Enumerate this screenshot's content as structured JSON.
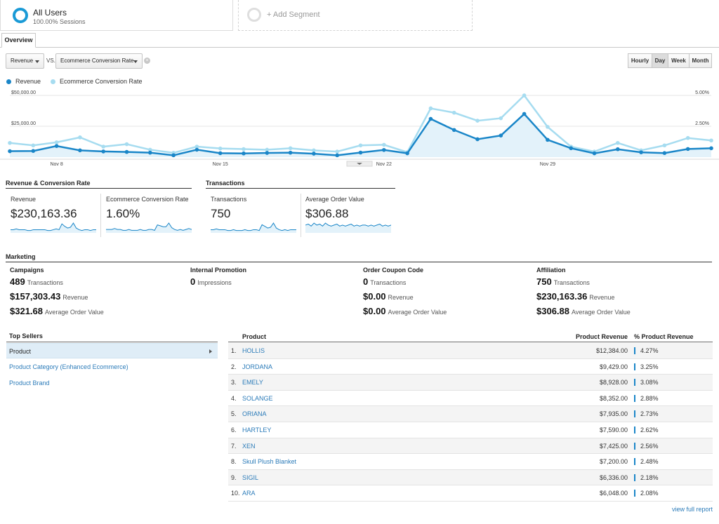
{
  "segments": {
    "active": {
      "title": "All Users",
      "subtitle": "100.00% Sessions"
    },
    "add_label": "+ Add Segment"
  },
  "tabs": [
    {
      "label": "Overview"
    }
  ],
  "controls": {
    "metric1": "Revenue",
    "vs_label": "VS.",
    "metric2": "Ecommerce Conversion Rate",
    "clear_icon": "×",
    "time_buttons": [
      {
        "label": "Hourly",
        "active": false
      },
      {
        "label": "Day",
        "active": true
      },
      {
        "label": "Week",
        "active": false
      },
      {
        "label": "Month",
        "active": false
      }
    ]
  },
  "legend": [
    {
      "label": "Revenue",
      "color": "#1a86c8"
    },
    {
      "label": "Ecommerce Conversion Rate",
      "color": "#a6dcf0"
    }
  ],
  "chart_data": {
    "type": "line",
    "x_ticks": [
      "Nov 8",
      "Nov 15",
      "Nov 22",
      "Nov 29"
    ],
    "y_left_ticks": [
      "$50,000.00",
      "$25,000.00"
    ],
    "y_right_ticks": [
      "5.00%",
      "2.50%"
    ],
    "y_left_range": [
      0,
      50000
    ],
    "y_right_range": [
      0,
      5
    ],
    "series": [
      {
        "name": "Revenue",
        "color": "#1a86c8",
        "values": [
          4800,
          5000,
          9000,
          5500,
          4600,
          4200,
          3600,
          1500,
          6000,
          3200,
          3000,
          3400,
          3600,
          2800,
          1500,
          3700,
          5800,
          3100,
          31000,
          22000,
          14500,
          17500,
          35000,
          14000,
          7200,
          3100,
          6400,
          3900,
          3300,
          6600,
          7200
        ]
      },
      {
        "name": "Ecommerce Conversion Rate",
        "color": "#a6dcf0",
        "values": [
          1.15,
          0.95,
          1.2,
          1.6,
          0.85,
          1.05,
          0.6,
          0.35,
          0.85,
          0.7,
          0.65,
          0.6,
          0.72,
          0.55,
          0.45,
          0.95,
          1.0,
          0.4,
          3.95,
          3.6,
          2.95,
          3.15,
          5.0,
          2.45,
          0.85,
          0.45,
          1.15,
          0.55,
          0.95,
          1.55,
          1.35
        ]
      }
    ],
    "grid": true
  },
  "summary": {
    "rev_conv_heading": "Revenue & Conversion Rate",
    "transactions_heading": "Transactions",
    "kpis": [
      {
        "label": "Revenue",
        "value": "$230,163.36",
        "spark": [
          3,
          3,
          4,
          3,
          3,
          3,
          2,
          2,
          3,
          3,
          3,
          3,
          3,
          2,
          2,
          3,
          4,
          3,
          10,
          7,
          5,
          6,
          11,
          5,
          3,
          2,
          3,
          3,
          2,
          3,
          3
        ]
      },
      {
        "label": "Ecommerce Conversion Rate",
        "value": "1.60%",
        "spark": [
          3,
          3,
          3,
          4,
          3,
          3,
          2,
          2,
          3,
          2,
          2,
          2,
          3,
          2,
          2,
          3,
          3,
          2,
          8,
          7,
          6,
          6,
          10,
          5,
          3,
          2,
          3,
          2,
          3,
          4,
          3
        ]
      },
      {
        "label": "Transactions",
        "value": "750",
        "spark": [
          3,
          3,
          4,
          3,
          3,
          3,
          2,
          2,
          3,
          2,
          2,
          2,
          3,
          2,
          2,
          3,
          3,
          2,
          9,
          7,
          5,
          6,
          11,
          5,
          3,
          2,
          3,
          2,
          3,
          3,
          3
        ]
      },
      {
        "label": "Average Order Value",
        "value": "$306.88",
        "spark": [
          7,
          8,
          6,
          9,
          7,
          8,
          6,
          9,
          7,
          6,
          7,
          8,
          6,
          7,
          6,
          7,
          8,
          6,
          7,
          6,
          7,
          7,
          6,
          7,
          6,
          7,
          8,
          6,
          7,
          6,
          7
        ]
      }
    ]
  },
  "marketing": {
    "heading": "Marketing",
    "columns": [
      {
        "title": "Campaigns",
        "rows": [
          {
            "value": "489",
            "label": "Transactions"
          },
          {
            "value": "$157,303.43",
            "label": "Revenue"
          },
          {
            "value": "$321.68",
            "label": "Average Order Value"
          }
        ]
      },
      {
        "title": "Internal Promotion",
        "rows": [
          {
            "value": "0",
            "label": "Impressions"
          }
        ]
      },
      {
        "title": "Order Coupon Code",
        "rows": [
          {
            "value": "0",
            "label": "Transactions"
          },
          {
            "value": "$0.00",
            "label": "Revenue"
          },
          {
            "value": "$0.00",
            "label": "Average Order Value"
          }
        ]
      },
      {
        "title": "Affiliation",
        "rows": [
          {
            "value": "750",
            "label": "Transactions"
          },
          {
            "value": "$230,163.36",
            "label": "Revenue"
          },
          {
            "value": "$306.88",
            "label": "Average Order Value"
          }
        ]
      }
    ]
  },
  "top_sellers": {
    "heading": "Top Sellers",
    "items": [
      {
        "label": "Product",
        "active": true
      },
      {
        "label": "Product Category (Enhanced Ecommerce)",
        "active": false
      },
      {
        "label": "Product Brand",
        "active": false
      }
    ]
  },
  "products": {
    "headers": {
      "product": "Product",
      "revenue": "Product Revenue",
      "pct": "% Product Revenue"
    },
    "rows": [
      {
        "rank": "1.",
        "name": "HOLLIS",
        "revenue": "$12,384.00",
        "pct": "4.27%"
      },
      {
        "rank": "2.",
        "name": "JORDANA",
        "revenue": "$9,429.00",
        "pct": "3.25%"
      },
      {
        "rank": "3.",
        "name": "EMELY",
        "revenue": "$8,928.00",
        "pct": "3.08%"
      },
      {
        "rank": "4.",
        "name": "SOLANGE",
        "revenue": "$8,352.00",
        "pct": "2.88%"
      },
      {
        "rank": "5.",
        "name": "ORIANA",
        "revenue": "$7,935.00",
        "pct": "2.73%"
      },
      {
        "rank": "6.",
        "name": "HARTLEY",
        "revenue": "$7,590.00",
        "pct": "2.62%"
      },
      {
        "rank": "7.",
        "name": "XEN",
        "revenue": "$7,425.00",
        "pct": "2.56%"
      },
      {
        "rank": "8.",
        "name": "Skull Plush Blanket",
        "revenue": "$7,200.00",
        "pct": "2.48%"
      },
      {
        "rank": "9.",
        "name": "SIGIL",
        "revenue": "$6,336.00",
        "pct": "2.18%"
      },
      {
        "rank": "10.",
        "name": "ARA",
        "revenue": "$6,048.00",
        "pct": "2.08%"
      }
    ],
    "view_full_label": "view full report"
  }
}
